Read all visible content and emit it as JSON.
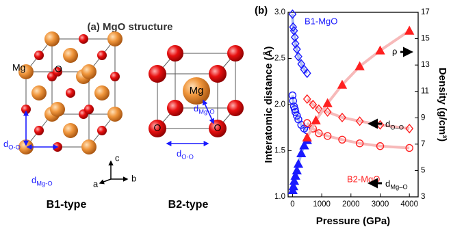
{
  "structure": {
    "title": "(a) MgO structure",
    "b1": {
      "label": "B1-type",
      "mg": "Mg",
      "o": "O",
      "d_oo": {
        "text": "d",
        "sub": "O-O"
      },
      "d_mgo": {
        "text": "d",
        "sub": "Mg-O"
      }
    },
    "b2": {
      "label": "B2-type",
      "mg": "Mg",
      "o1": "O",
      "o2": "O",
      "d_mgo": {
        "text": "d",
        "sub": "Mg-O"
      },
      "d_oo": {
        "text": "d",
        "sub": "O-O"
      }
    },
    "axes": {
      "a": "a",
      "b": "b",
      "c": "c"
    }
  },
  "chart_data": {
    "type": "scatter",
    "panel_label": "(b)",
    "xlabel": "Pressure (GPa)",
    "ylabel": "Interatomic distance (Å)",
    "y2label": "Density (g/cm³)",
    "xlim": [
      -150,
      4300
    ],
    "xticks": [
      0,
      1000,
      2000,
      3000,
      4000
    ],
    "ylim": [
      1.0,
      3.0
    ],
    "yticks": [
      {
        "value": 1.0,
        "label": "1.0"
      },
      1.5,
      {
        "value": 2.0,
        "label": "2.0"
      },
      2.5,
      {
        "value": 3.0,
        "label": "3.0"
      }
    ],
    "y2lim": [
      3,
      17
    ],
    "y2ticks": [
      3,
      5,
      7,
      9,
      11,
      13,
      15,
      17
    ],
    "series": [
      {
        "color": "#1a1aff",
        "line_color": "#a9b8f2",
        "marker": "diamond",
        "filled": false,
        "x": [
          0,
          20,
          50,
          80,
          100,
          150,
          200,
          300,
          400,
          500
        ],
        "values": [
          2.98,
          2.84,
          2.8,
          2.73,
          2.66,
          2.6,
          2.52,
          2.44,
          2.38,
          2.34
        ]
      },
      {
        "color": "#1a1aff",
        "line_color": "#a9b8f2",
        "marker": "circle",
        "filled": false,
        "x": [
          0,
          20,
          50,
          80,
          100,
          150,
          200,
          300,
          400,
          500
        ],
        "values": [
          2.1,
          2.04,
          1.98,
          1.95,
          1.92,
          1.88,
          1.84,
          1.78,
          1.74,
          1.72
        ]
      },
      {
        "color": "#1a1aff",
        "line_color": "#a9b8f2",
        "marker": "triangle",
        "filled": true,
        "axis": "y2",
        "x": [
          10,
          30,
          60,
          100,
          150,
          200,
          300,
          400,
          500
        ],
        "values": [
          3.5,
          3.8,
          4.2,
          4.6,
          5.0,
          5.5,
          6.3,
          6.9,
          7.3
        ]
      },
      {
        "color": "#ff2020",
        "line_color": "#f7b9b9",
        "marker": "diamond",
        "filled": false,
        "x": [
          500,
          700,
          900,
          1200,
          1700,
          2300,
          3000,
          4000
        ],
        "values": [
          2.06,
          2.0,
          1.95,
          1.92,
          1.86,
          1.82,
          1.78,
          1.74
        ]
      },
      {
        "color": "#ff2020",
        "line_color": "#f7b9b9",
        "marker": "circle",
        "filled": false,
        "x": [
          500,
          700,
          900,
          1200,
          1700,
          2300,
          3000,
          4000
        ],
        "values": [
          1.8,
          1.74,
          1.69,
          1.66,
          1.62,
          1.58,
          1.55,
          1.53
        ]
      },
      {
        "color": "#ff2020",
        "line_color": "#f7b9b9",
        "marker": "triangle",
        "filled": true,
        "axis": "y2",
        "x": [
          500,
          800,
          1200,
          1700,
          2300,
          3000,
          4000
        ],
        "values": [
          7.5,
          8.8,
          10.1,
          11.5,
          12.9,
          14.1,
          15.6
        ]
      }
    ],
    "annotations": [
      {
        "text": "B1-MgO",
        "color": "#1a1aff"
      },
      {
        "text": "B2-MgO",
        "color": "#ff2020"
      },
      {
        "text": "ρ",
        "color": "#000000"
      },
      {
        "text": "d",
        "sub": "O–O",
        "color": "#000000"
      },
      {
        "text": "d",
        "sub": "Mg–O",
        "color": "#000000"
      }
    ]
  }
}
